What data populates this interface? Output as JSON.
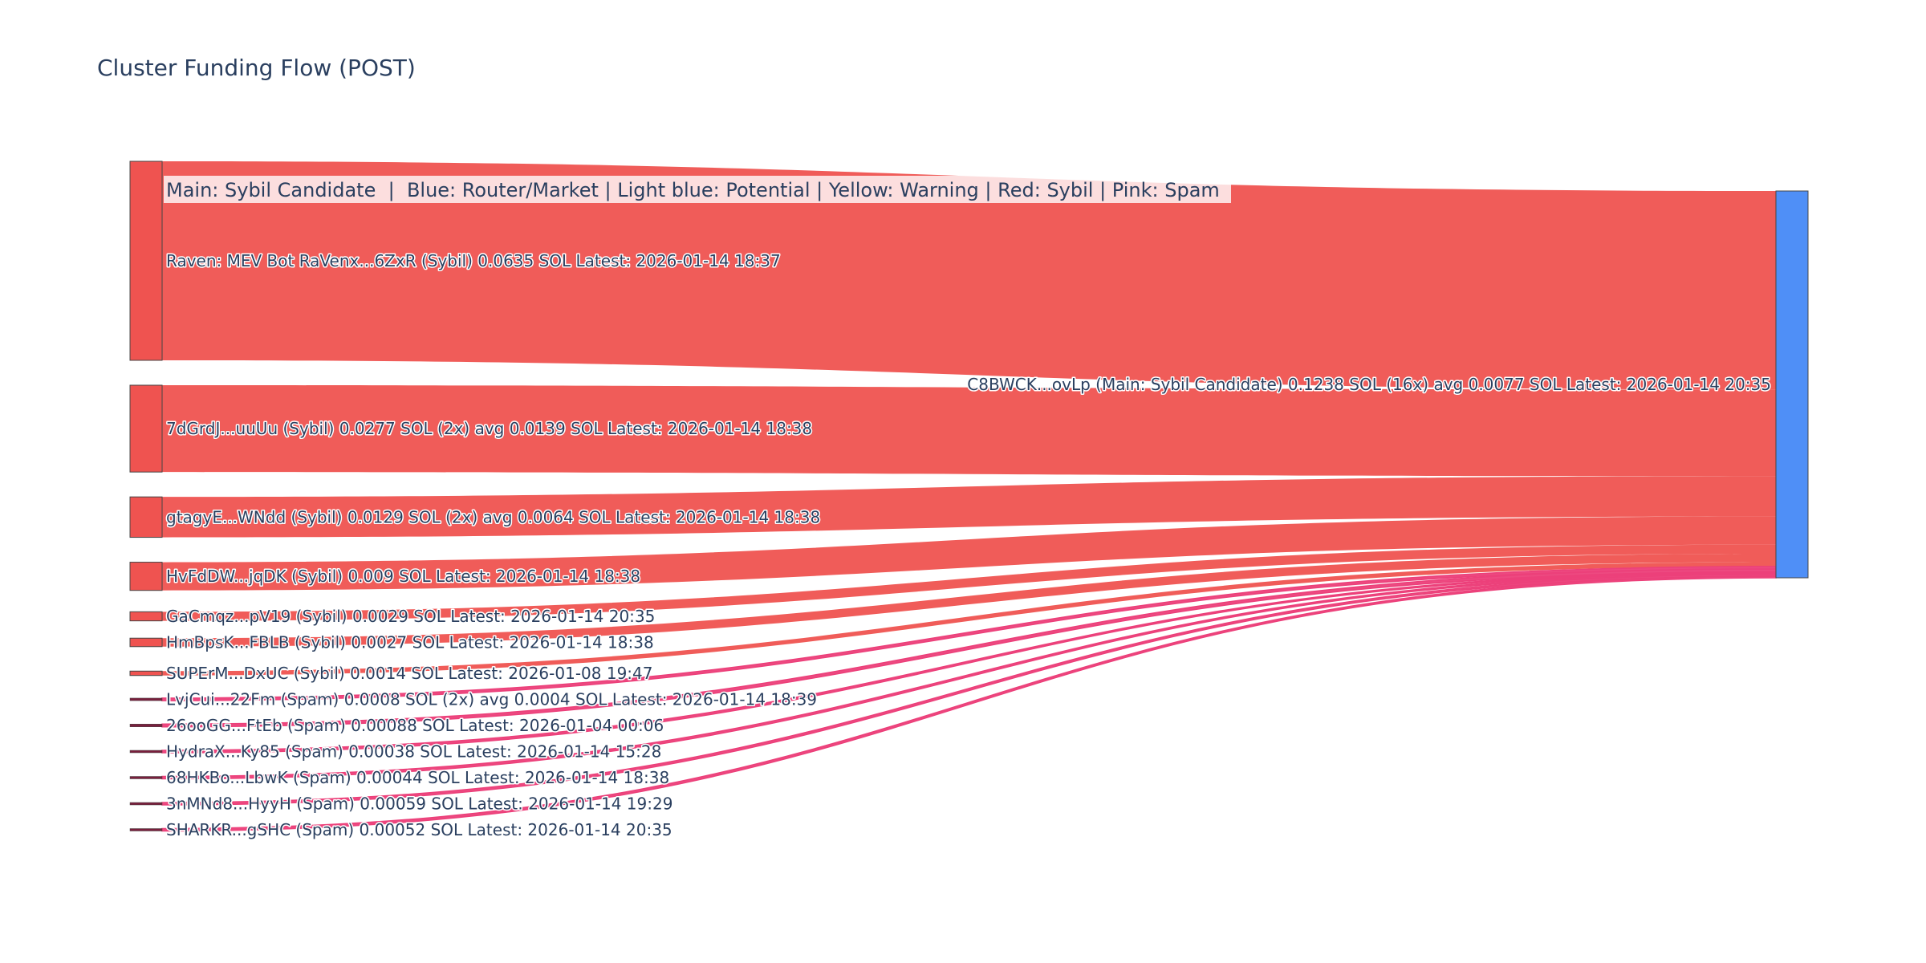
{
  "chart_data": {
    "type": "sankey",
    "title": "Cluster Funding Flow (POST)",
    "legend_note": "Main: Sybil Candidate  |  Blue: Router/Market | Light blue: Potential | Yellow: Warning | Red: Sybil | Pink: Spam",
    "colors": {
      "sybil": "#ef553b",
      "sybil_link": "#ef5350",
      "spam_link": "#ec407a",
      "spam_node": "#7a1f3d",
      "target": "#4f8ff7",
      "node_outline": "#444444"
    },
    "target": {
      "label": "C8BWCK...ovLp (Main: Sybil Candidate) 0.1238 SOL (16x) avg 0.0077 SOL Latest: 2026-01-14 20:35",
      "total_sol": 0.1238
    },
    "sources": [
      {
        "label": "Raven: MEV Bot RaVenx...6ZxR (Sybil) 0.0635 SOL Latest: 2026-01-14 18:37",
        "value": 0.0635,
        "kind": "sybil"
      },
      {
        "label": "7dGrdJ...uuUu (Sybil) 0.0277 SOL (2x) avg 0.0139 SOL Latest: 2026-01-14 18:38",
        "value": 0.0277,
        "kind": "sybil"
      },
      {
        "label": "gtagyE...WNdd (Sybil) 0.0129 SOL (2x) avg 0.0064 SOL Latest: 2026-01-14 18:38",
        "value": 0.0129,
        "kind": "sybil"
      },
      {
        "label": "HvFdDW...jqDK (Sybil) 0.009 SOL Latest: 2026-01-14 18:38",
        "value": 0.009,
        "kind": "sybil"
      },
      {
        "label": "GaCmqz...pV19 (Sybil) 0.0029 SOL Latest: 2026-01-14 20:35",
        "value": 0.0029,
        "kind": "sybil"
      },
      {
        "label": "HmBpsK...FBLB (Sybil) 0.0027 SOL Latest: 2026-01-14 18:38",
        "value": 0.0027,
        "kind": "sybil"
      },
      {
        "label": "SUPErM...DxUC (Sybil) 0.0014 SOL Latest: 2026-01-08 19:47",
        "value": 0.0014,
        "kind": "sybil"
      },
      {
        "label": "LvjCui...22Fm (Spam) 0.0008 SOL (2x) avg 0.0004 SOL Latest: 2026-01-14 18:39",
        "value": 0.0008,
        "kind": "spam"
      },
      {
        "label": "26ooGG...FtEb (Spam) 0.00088 SOL Latest: 2026-01-04 00:06",
        "value": 0.00088,
        "kind": "spam"
      },
      {
        "label": "HydraX...Ky85 (Spam) 0.00038 SOL Latest: 2026-01-14 15:28",
        "value": 0.00038,
        "kind": "spam"
      },
      {
        "label": "68HKBo...LbwK (Spam) 0.00044 SOL Latest: 2026-01-14 18:38",
        "value": 0.00044,
        "kind": "spam"
      },
      {
        "label": "3nMNd8...HyyH (Spam) 0.00059 SOL Latest: 2026-01-14 19:29",
        "value": 0.00059,
        "kind": "spam"
      },
      {
        "label": "SHARKR...gSHC (Spam) 0.00052 SOL Latest: 2026-01-14 20:35",
        "value": 0.00052,
        "kind": "spam"
      }
    ]
  }
}
